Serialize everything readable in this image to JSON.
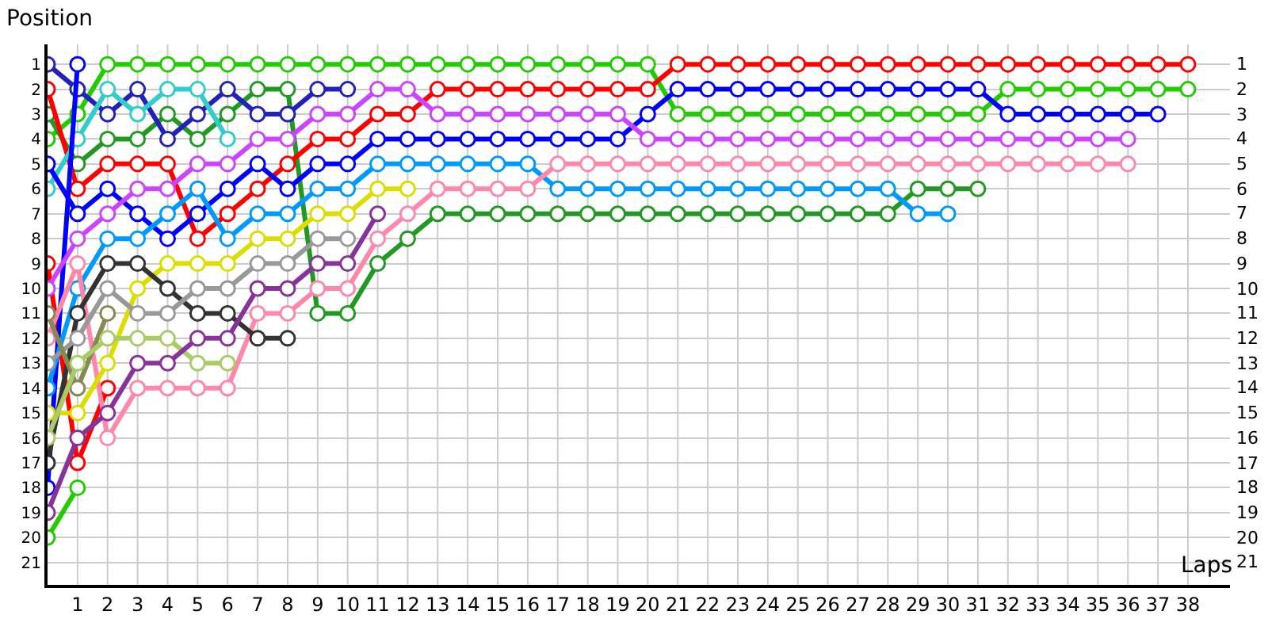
{
  "chart_data": {
    "type": "line",
    "xlabel": "Laps",
    "ylabel": "Position",
    "x": [
      0,
      1,
      2,
      3,
      4,
      5,
      6,
      7,
      8,
      9,
      10,
      11,
      12,
      13,
      14,
      15,
      16,
      17,
      18,
      19,
      20,
      21,
      22,
      23,
      24,
      25,
      26,
      27,
      28,
      29,
      30,
      31,
      32,
      33,
      34,
      35,
      36,
      37,
      38
    ],
    "series": [
      {
        "color": "#22cc00",
        "values": [
          4,
          3,
          1,
          1,
          1,
          1,
          1,
          1,
          1,
          1,
          1,
          1,
          1,
          1,
          1,
          1,
          1,
          1,
          1,
          1,
          1,
          3,
          3,
          3,
          3,
          3,
          3,
          3,
          3,
          3,
          3,
          3,
          2,
          2,
          2,
          2,
          2,
          2,
          2
        ]
      },
      {
        "color": "#229922",
        "values": [
          3,
          5,
          4,
          4,
          3,
          4,
          3,
          2,
          2,
          11,
          11,
          9,
          8,
          7,
          7,
          7,
          7,
          7,
          7,
          7,
          7,
          7,
          7,
          7,
          7,
          7,
          7,
          7,
          7,
          6,
          6,
          6,
          null,
          null,
          null,
          null,
          null,
          null,
          null
        ]
      },
      {
        "color": "#ff0000",
        "values": [
          2,
          6,
          5,
          5,
          5,
          8,
          7,
          6,
          5,
          4,
          4,
          3,
          3,
          2,
          2,
          2,
          2,
          2,
          2,
          2,
          2,
          1,
          1,
          1,
          1,
          1,
          1,
          1,
          1,
          1,
          1,
          1,
          1,
          1,
          1,
          1,
          1,
          1,
          1
        ]
      },
      {
        "color": "#ff0000",
        "values": [
          9,
          17,
          14,
          null,
          null,
          null,
          null,
          null,
          null,
          null,
          null,
          null,
          null,
          null,
          null,
          null,
          null,
          null,
          null,
          null,
          null,
          null,
          null,
          null,
          null,
          null,
          null,
          null,
          null,
          null,
          null,
          null,
          null,
          null,
          null,
          null,
          null,
          null,
          null
        ]
      },
      {
        "color": "#2222bb",
        "values": [
          1,
          2,
          3,
          2,
          4,
          3,
          2,
          3,
          3,
          2,
          2,
          null,
          null,
          null,
          null,
          null,
          null,
          null,
          null,
          null,
          null,
          null,
          null,
          null,
          null,
          null,
          null,
          null,
          null,
          null,
          null,
          null,
          null,
          null,
          null,
          null,
          null,
          null,
          null
        ]
      },
      {
        "color": "#33cccc",
        "values": [
          6,
          4,
          2,
          3,
          2,
          2,
          4,
          null,
          null,
          null,
          null,
          null,
          null,
          null,
          null,
          null,
          null,
          null,
          null,
          null,
          null,
          null,
          null,
          null,
          null,
          null,
          null,
          null,
          null,
          null,
          null,
          null,
          null,
          null,
          null,
          null,
          null,
          null,
          null
        ]
      },
      {
        "color": "#0000ff",
        "values": [
          5,
          7,
          6,
          7,
          8,
          7,
          6,
          5,
          6,
          5,
          5,
          4,
          4,
          4,
          4,
          4,
          4,
          4,
          4,
          4,
          3,
          2,
          2,
          2,
          2,
          2,
          2,
          2,
          2,
          2,
          2,
          2,
          3,
          3,
          3,
          3,
          3,
          3,
          null
        ]
      },
      {
        "color": "#0000ff",
        "values": [
          18,
          1,
          null,
          null,
          null,
          null,
          null,
          null,
          null,
          null,
          null,
          null,
          null,
          null,
          null,
          null,
          null,
          null,
          null,
          null,
          null,
          null,
          null,
          null,
          null,
          null,
          null,
          null,
          null,
          null,
          null,
          null,
          null,
          null,
          null,
          null,
          null,
          null,
          null
        ]
      },
      {
        "color": "#cc44ff",
        "values": [
          10,
          8,
          7,
          6,
          6,
          5,
          5,
          4,
          4,
          3,
          3,
          2,
          2,
          3,
          3,
          3,
          3,
          3,
          3,
          3,
          4,
          4,
          4,
          4,
          4,
          4,
          4,
          4,
          4,
          4,
          4,
          4,
          4,
          4,
          4,
          4,
          4,
          null,
          null
        ]
      },
      {
        "color": "#0099ff",
        "values": [
          14,
          10,
          8,
          8,
          7,
          6,
          8,
          7,
          7,
          6,
          6,
          5,
          5,
          5,
          5,
          5,
          5,
          6,
          6,
          6,
          6,
          6,
          6,
          6,
          6,
          6,
          6,
          6,
          6,
          7,
          7,
          null,
          null,
          null,
          null,
          null,
          null,
          null,
          null
        ]
      },
      {
        "color": "#ff88aa",
        "values": [
          12,
          9,
          16,
          14,
          14,
          14,
          14,
          11,
          11,
          10,
          10,
          8,
          7,
          6,
          6,
          6,
          6,
          5,
          5,
          5,
          5,
          5,
          5,
          5,
          5,
          5,
          5,
          5,
          5,
          5,
          5,
          5,
          5,
          5,
          5,
          5,
          5,
          null,
          null
        ]
      },
      {
        "color": "#dddd00",
        "values": [
          15,
          15,
          13,
          10,
          9,
          9,
          9,
          8,
          8,
          7,
          7,
          6,
          6,
          null,
          null,
          null,
          null,
          null,
          null,
          null,
          null,
          null,
          null,
          null,
          null,
          null,
          null,
          null,
          null,
          null,
          null,
          null,
          null,
          null,
          null,
          null,
          null,
          null,
          null
        ]
      },
      {
        "color": "#333333",
        "values": [
          17,
          11,
          9,
          9,
          10,
          11,
          11,
          12,
          12,
          null,
          null,
          null,
          null,
          null,
          null,
          null,
          null,
          null,
          null,
          null,
          null,
          null,
          null,
          null,
          null,
          null,
          null,
          null,
          null,
          null,
          null,
          null,
          null,
          null,
          null,
          null,
          null,
          null,
          null
        ]
      },
      {
        "color": "#999999",
        "values": [
          13,
          12,
          10,
          11,
          11,
          10,
          10,
          9,
          9,
          8,
          8,
          null,
          null,
          null,
          null,
          null,
          null,
          null,
          null,
          null,
          null,
          null,
          null,
          null,
          null,
          null,
          null,
          null,
          null,
          null,
          null,
          null,
          null,
          null,
          null,
          null,
          null,
          null,
          null
        ]
      },
      {
        "color": "#888855",
        "values": [
          11,
          14,
          11,
          null,
          null,
          null,
          null,
          null,
          null,
          null,
          null,
          null,
          null,
          null,
          null,
          null,
          null,
          null,
          null,
          null,
          null,
          null,
          null,
          null,
          null,
          null,
          null,
          null,
          null,
          null,
          null,
          null,
          null,
          null,
          null,
          null,
          null,
          null,
          null
        ]
      },
      {
        "color": "#aacc66",
        "values": [
          16,
          13,
          12,
          12,
          12,
          13,
          13,
          null,
          null,
          null,
          null,
          null,
          null,
          null,
          null,
          null,
          null,
          null,
          null,
          null,
          null,
          null,
          null,
          null,
          null,
          null,
          null,
          null,
          null,
          null,
          null,
          null,
          null,
          null,
          null,
          null,
          null,
          null,
          null
        ]
      },
      {
        "color": "#883399",
        "values": [
          19,
          16,
          15,
          13,
          13,
          12,
          12,
          10,
          10,
          9,
          9,
          7,
          null,
          null,
          null,
          null,
          null,
          null,
          null,
          null,
          null,
          null,
          null,
          null,
          null,
          null,
          null,
          null,
          null,
          null,
          null,
          null,
          null,
          null,
          null,
          null,
          null,
          null,
          null
        ]
      },
      {
        "color": "#22cc00",
        "values": [
          20,
          18,
          null,
          null,
          null,
          null,
          null,
          null,
          null,
          null,
          null,
          null,
          null,
          null,
          null,
          null,
          null,
          null,
          null,
          null,
          null,
          null,
          null,
          null,
          null,
          null,
          null,
          null,
          null,
          null,
          null,
          null,
          null,
          null,
          null,
          null,
          null,
          null,
          null
        ]
      }
    ],
    "xlim": [
      0,
      39.4
    ],
    "xticks": [
      1,
      2,
      3,
      4,
      5,
      6,
      7,
      8,
      9,
      10,
      11,
      12,
      13,
      14,
      15,
      16,
      17,
      18,
      19,
      20,
      21,
      22,
      23,
      24,
      25,
      26,
      27,
      28,
      29,
      30,
      31,
      32,
      33,
      34,
      35,
      36,
      37,
      38
    ],
    "ylim": [
      21.9,
      0.2
    ],
    "yticks": [
      1,
      2,
      3,
      4,
      5,
      6,
      7,
      8,
      9,
      10,
      11,
      12,
      13,
      14,
      15,
      16,
      17,
      18,
      19,
      20,
      21
    ],
    "y2lim": [
      21.9,
      0.2
    ],
    "y2ticks": [
      1,
      2,
      3,
      4,
      5,
      6,
      7,
      8,
      9,
      10,
      11,
      12,
      13,
      14,
      15,
      16,
      17,
      18,
      19,
      20,
      21
    ],
    "grid": true,
    "marker": "circle",
    "line_style": "solid"
  }
}
